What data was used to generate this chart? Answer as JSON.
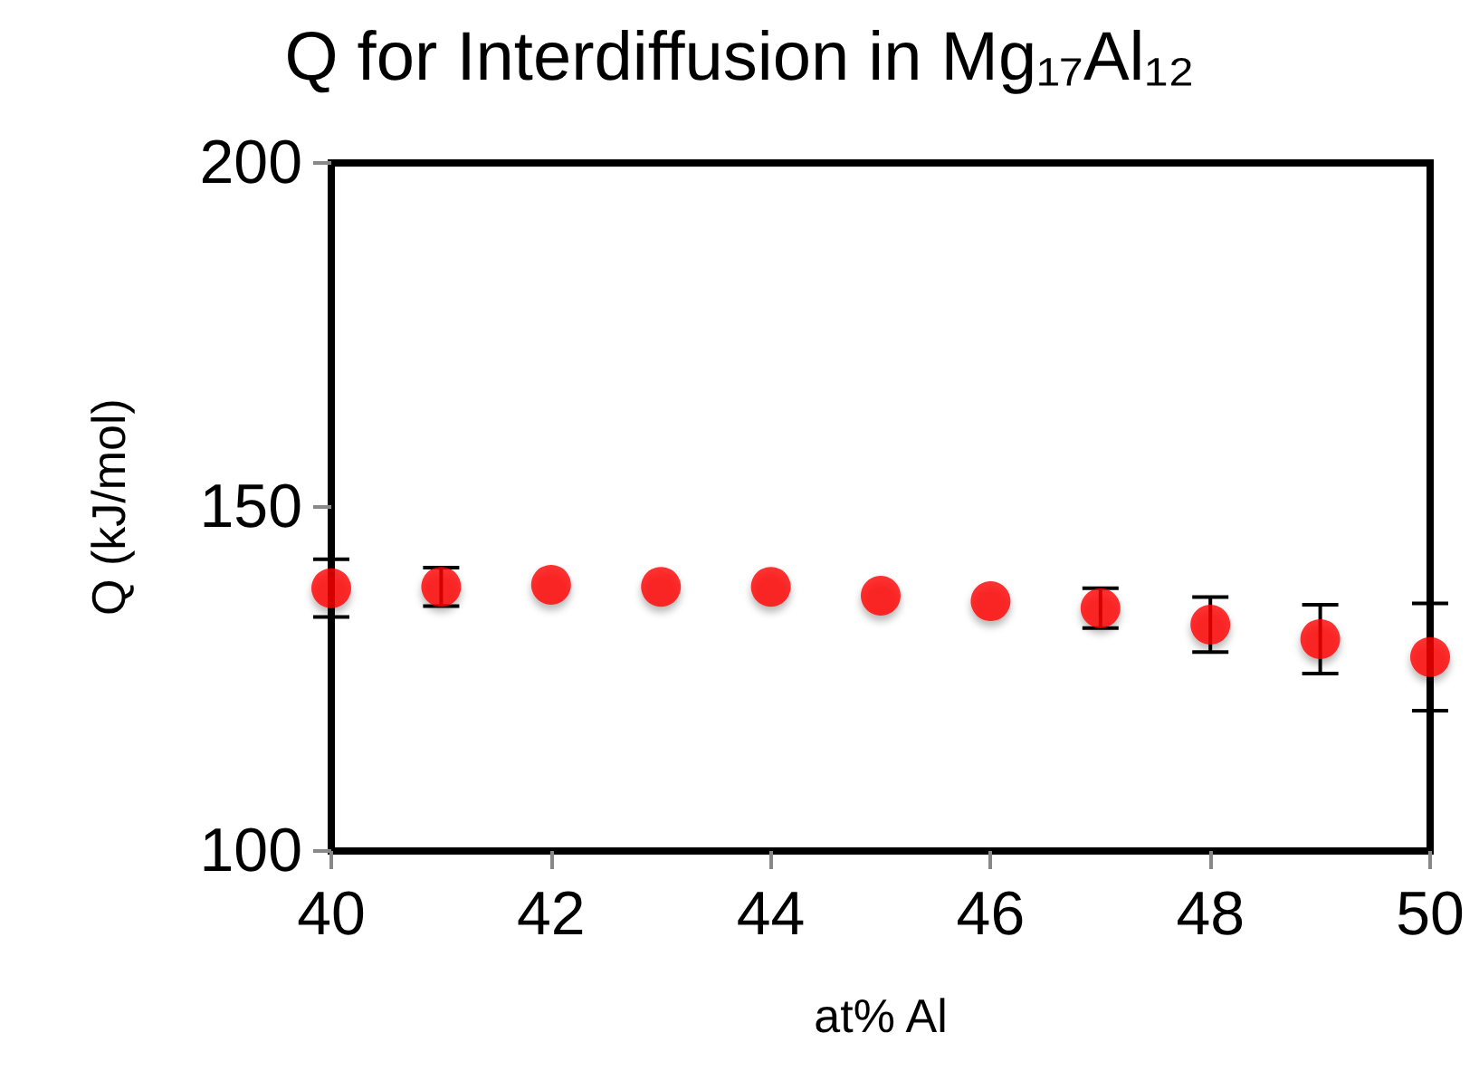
{
  "chart_data": {
    "type": "scatter",
    "title": "Q for Interdiffusion in Mg₁₇Al₁₂",
    "xlabel": "at% Al",
    "ylabel": "Q (kJ/mol)",
    "x": [
      40,
      41,
      42,
      43,
      44,
      45,
      46,
      47,
      48,
      49,
      50
    ],
    "series": [
      {
        "color": "#ff0000",
        "values": [
          138.2,
          138.4,
          138.7,
          138.4,
          138.4,
          137.1,
          136.3,
          135.3,
          132.9,
          130.8,
          128.2
        ],
        "errors": [
          4.2,
          2.8,
          null,
          null,
          null,
          null,
          null,
          2.9,
          4.0,
          5.0,
          7.8
        ]
      }
    ],
    "xlim": [
      40,
      50
    ],
    "xticks": [
      40,
      42,
      44,
      46,
      48,
      50
    ],
    "ylim": [
      100,
      200
    ],
    "yticks": [
      100,
      150,
      200
    ],
    "marker": "circle"
  }
}
